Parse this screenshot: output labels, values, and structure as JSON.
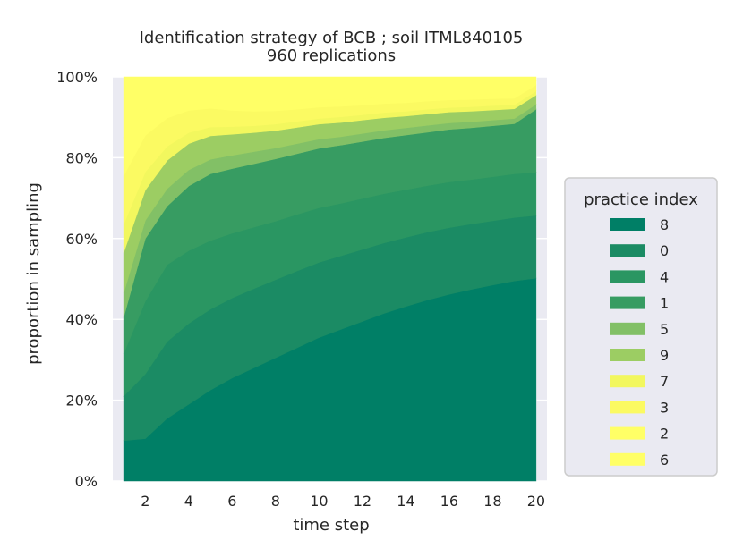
{
  "chart_data": {
    "type": "area",
    "stacked": true,
    "title": "Identification strategy of BCB ; soil ITML840105",
    "subtitle": "960 replications",
    "xlabel": "time step",
    "ylabel": "proportion in sampling",
    "xlim": [
      0.5,
      20.5
    ],
    "ylim": [
      0,
      1
    ],
    "grid": true,
    "x": [
      1,
      2,
      3,
      4,
      5,
      6,
      7,
      8,
      9,
      10,
      11,
      12,
      13,
      14,
      15,
      16,
      17,
      18,
      19,
      20
    ],
    "x_ticks": [
      "2",
      "4",
      "6",
      "8",
      "10",
      "12",
      "14",
      "16",
      "18",
      "20"
    ],
    "y_ticks": [
      "0%",
      "20%",
      "40%",
      "60%",
      "80%",
      "100%"
    ],
    "legend": {
      "title": "practice index",
      "placement": "right"
    },
    "series": [
      {
        "name": "8",
        "color": "#007f66",
        "values": [
          0.1,
          0.105,
          0.155,
          0.19,
          0.225,
          0.255,
          0.28,
          0.305,
          0.33,
          0.355,
          0.375,
          0.395,
          0.415,
          0.432,
          0.448,
          0.462,
          0.474,
          0.485,
          0.495,
          0.502
        ]
      },
      {
        "name": "0",
        "color": "#1b8b64",
        "values": [
          0.11,
          0.16,
          0.19,
          0.2,
          0.2,
          0.198,
          0.196,
          0.193,
          0.19,
          0.186,
          0.182,
          0.178,
          0.174,
          0.171,
          0.168,
          0.165,
          0.162,
          0.159,
          0.157,
          0.155
        ]
      },
      {
        "name": "4",
        "color": "#2a9662",
        "values": [
          0.105,
          0.18,
          0.19,
          0.18,
          0.17,
          0.16,
          0.152,
          0.145,
          0.14,
          0.135,
          0.13,
          0.126,
          0.122,
          0.118,
          0.115,
          0.113,
          0.11,
          0.109,
          0.108,
          0.107
        ]
      },
      {
        "name": "1",
        "color": "#379c62",
        "values": [
          0.09,
          0.155,
          0.145,
          0.16,
          0.165,
          0.16,
          0.157,
          0.154,
          0.15,
          0.147,
          0.144,
          0.141,
          0.138,
          0.135,
          0.132,
          0.13,
          0.128,
          0.126,
          0.124,
          0.156
        ]
      },
      {
        "name": "5",
        "color": "#82c066",
        "values": [
          0.06,
          0.045,
          0.043,
          0.04,
          0.036,
          0.033,
          0.03,
          0.027,
          0.025,
          0.023,
          0.021,
          0.02,
          0.019,
          0.018,
          0.017,
          0.016,
          0.015,
          0.014,
          0.013,
          0.012
        ]
      },
      {
        "name": "9",
        "color": "#9ccd63",
        "values": [
          0.1,
          0.075,
          0.07,
          0.065,
          0.058,
          0.052,
          0.047,
          0.043,
          0.04,
          0.037,
          0.035,
          0.033,
          0.031,
          0.029,
          0.028,
          0.027,
          0.026,
          0.025,
          0.024,
          0.023
        ]
      },
      {
        "name": "7",
        "color": "#f2f75e",
        "values": [
          0.07,
          0.045,
          0.035,
          0.027,
          0.022,
          0.019,
          0.017,
          0.016,
          0.015,
          0.014,
          0.014,
          0.013,
          0.013,
          0.012,
          0.012,
          0.011,
          0.011,
          0.011,
          0.01,
          0.01
        ]
      },
      {
        "name": "3",
        "color": "#fbfa62",
        "values": [
          0.12,
          0.09,
          0.07,
          0.055,
          0.046,
          0.04,
          0.036,
          0.033,
          0.03,
          0.028,
          0.026,
          0.024,
          0.022,
          0.021,
          0.02,
          0.019,
          0.018,
          0.017,
          0.016,
          0.015
        ]
      },
      {
        "name": "2",
        "color": "#ffff66",
        "values": [
          0.095,
          0.065,
          0.05,
          0.04,
          0.035,
          0.03,
          0.027,
          0.024,
          0.022,
          0.02,
          0.018,
          0.017,
          0.016,
          0.015,
          0.014,
          0.013,
          0.012,
          0.012,
          0.011,
          0.01
        ]
      },
      {
        "name": "6",
        "color": "#ffff66",
        "values": [
          0.15,
          0.08,
          0.052,
          0.043,
          0.043,
          0.053,
          0.058,
          0.06,
          0.058,
          0.055,
          0.055,
          0.053,
          0.05,
          0.049,
          0.046,
          0.044,
          0.044,
          0.042,
          0.042,
          0.01
        ]
      }
    ]
  }
}
